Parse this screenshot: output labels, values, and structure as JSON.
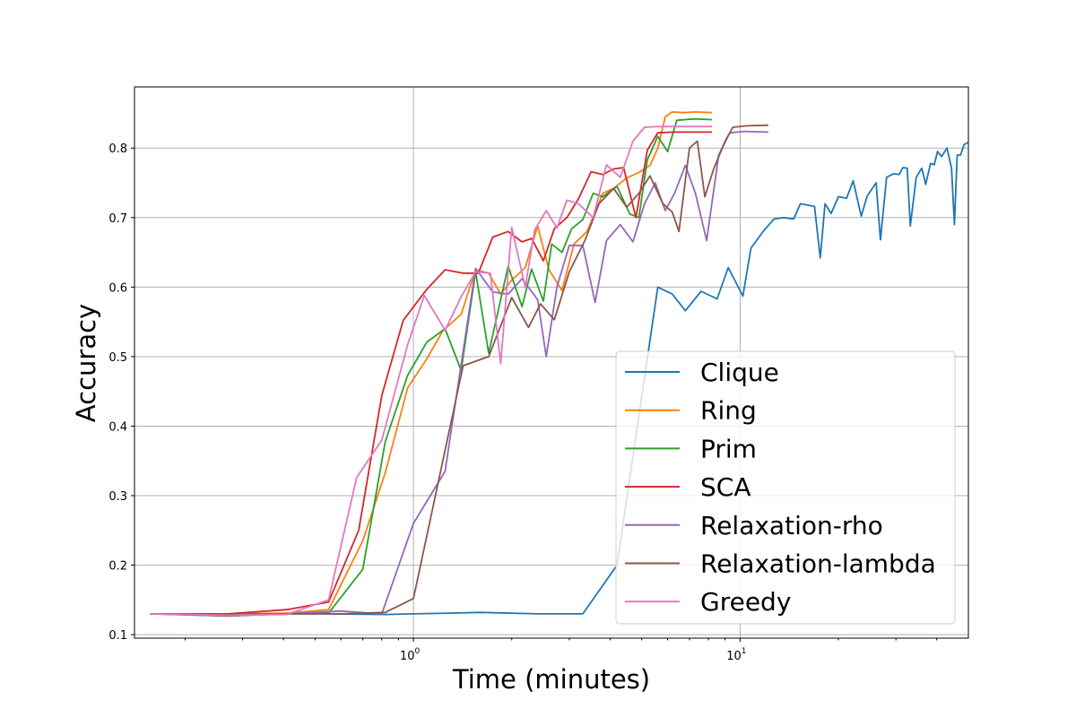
{
  "chart_data": {
    "type": "line",
    "title": "",
    "xlabel": "Time (minutes)",
    "ylabel": "Accuracy",
    "x_scale": "log",
    "xlim": [
      0.14,
      50
    ],
    "ylim": [
      0.095,
      0.888
    ],
    "x_ticks": [
      {
        "value": 1,
        "base": "10",
        "exp": "0"
      },
      {
        "value": 10,
        "base": "10",
        "exp": "1"
      }
    ],
    "y_ticks": [
      {
        "value": 0.1,
        "label": "0.1"
      },
      {
        "value": 0.2,
        "label": "0.2"
      },
      {
        "value": 0.3,
        "label": "0.3"
      },
      {
        "value": 0.4,
        "label": "0.4"
      },
      {
        "value": 0.5,
        "label": "0.5"
      },
      {
        "value": 0.6,
        "label": "0.6"
      },
      {
        "value": 0.7,
        "label": "0.7"
      },
      {
        "value": 0.8,
        "label": "0.8"
      }
    ],
    "grid": true,
    "legend": "lower-right",
    "series": [
      {
        "name": "Clique",
        "color": "#1f77b4",
        "points": [
          [
            0.156,
            0.13
          ],
          [
            0.27,
            0.13
          ],
          [
            0.55,
            0.13
          ],
          [
            0.82,
            0.129
          ],
          [
            1.0,
            0.13
          ],
          [
            1.3,
            0.131
          ],
          [
            1.6,
            0.132
          ],
          [
            2.4,
            0.13
          ],
          [
            3.3,
            0.13
          ],
          [
            4.2,
            0.2
          ],
          [
            5.6,
            0.6
          ],
          [
            6.2,
            0.59
          ],
          [
            6.8,
            0.566
          ],
          [
            7.6,
            0.594
          ],
          [
            8.5,
            0.583
          ],
          [
            9.2,
            0.628
          ],
          [
            10.2,
            0.587
          ],
          [
            10.8,
            0.656
          ],
          [
            11.8,
            0.681
          ],
          [
            12.7,
            0.698
          ],
          [
            13.6,
            0.7
          ],
          [
            14.6,
            0.698
          ],
          [
            15.3,
            0.72
          ],
          [
            16.9,
            0.716
          ],
          [
            17.6,
            0.642
          ],
          [
            18.2,
            0.72
          ],
          [
            19.0,
            0.706
          ],
          [
            20.0,
            0.73
          ],
          [
            21.2,
            0.728
          ],
          [
            22.2,
            0.753
          ],
          [
            23.5,
            0.702
          ],
          [
            24.5,
            0.731
          ],
          [
            26.1,
            0.75
          ],
          [
            26.9,
            0.668
          ],
          [
            28.1,
            0.758
          ],
          [
            29.5,
            0.763
          ],
          [
            30.7,
            0.762
          ],
          [
            31.5,
            0.772
          ],
          [
            32.5,
            0.771
          ],
          [
            33.2,
            0.688
          ],
          [
            34.6,
            0.758
          ],
          [
            36.0,
            0.771
          ],
          [
            37.0,
            0.748
          ],
          [
            38.3,
            0.778
          ],
          [
            39.3,
            0.776
          ],
          [
            40.2,
            0.795
          ],
          [
            41.4,
            0.788
          ],
          [
            43.0,
            0.8
          ],
          [
            44.4,
            0.771
          ],
          [
            45.3,
            0.69
          ],
          [
            46.2,
            0.79
          ],
          [
            47.3,
            0.79
          ],
          [
            48.5,
            0.805
          ],
          [
            49.8,
            0.808
          ]
        ]
      },
      {
        "name": "Ring",
        "color": "#ff7f0e",
        "points": [
          [
            0.156,
            0.13
          ],
          [
            0.27,
            0.13
          ],
          [
            0.41,
            0.131
          ],
          [
            0.55,
            0.136
          ],
          [
            0.7,
            0.235
          ],
          [
            0.82,
            0.333
          ],
          [
            0.96,
            0.455
          ],
          [
            1.1,
            0.497
          ],
          [
            1.23,
            0.537
          ],
          [
            1.4,
            0.561
          ],
          [
            1.55,
            0.625
          ],
          [
            1.7,
            0.62
          ],
          [
            1.85,
            0.59
          ],
          [
            2.0,
            0.61
          ],
          [
            2.2,
            0.628
          ],
          [
            2.4,
            0.688
          ],
          [
            2.6,
            0.625
          ],
          [
            2.85,
            0.595
          ],
          [
            3.1,
            0.662
          ],
          [
            3.4,
            0.68
          ],
          [
            3.8,
            0.735
          ],
          [
            4.1,
            0.742
          ],
          [
            4.5,
            0.757
          ],
          [
            4.9,
            0.765
          ],
          [
            5.3,
            0.775
          ],
          [
            5.6,
            0.8
          ],
          [
            5.9,
            0.845
          ],
          [
            6.2,
            0.852
          ],
          [
            6.7,
            0.851
          ],
          [
            7.3,
            0.852
          ],
          [
            8.2,
            0.851
          ]
        ]
      },
      {
        "name": "Prim",
        "color": "#2ca02c",
        "points": [
          [
            0.156,
            0.13
          ],
          [
            0.27,
            0.13
          ],
          [
            0.41,
            0.13
          ],
          [
            0.55,
            0.131
          ],
          [
            0.7,
            0.194
          ],
          [
            0.82,
            0.378
          ],
          [
            0.96,
            0.473
          ],
          [
            1.1,
            0.521
          ],
          [
            1.25,
            0.54
          ],
          [
            1.4,
            0.48
          ],
          [
            1.55,
            0.622
          ],
          [
            1.7,
            0.505
          ],
          [
            1.95,
            0.63
          ],
          [
            2.15,
            0.572
          ],
          [
            2.3,
            0.626
          ],
          [
            2.5,
            0.58
          ],
          [
            2.65,
            0.662
          ],
          [
            2.85,
            0.65
          ],
          [
            3.05,
            0.684
          ],
          [
            3.3,
            0.697
          ],
          [
            3.55,
            0.735
          ],
          [
            3.8,
            0.73
          ],
          [
            4.2,
            0.745
          ],
          [
            4.6,
            0.705
          ],
          [
            4.9,
            0.7
          ],
          [
            5.2,
            0.783
          ],
          [
            5.6,
            0.817
          ],
          [
            6.0,
            0.795
          ],
          [
            6.4,
            0.84
          ],
          [
            7.2,
            0.842
          ],
          [
            8.2,
            0.841
          ]
        ]
      },
      {
        "name": "SCA",
        "color": "#d62728",
        "points": [
          [
            0.156,
            0.13
          ],
          [
            0.27,
            0.13
          ],
          [
            0.41,
            0.136
          ],
          [
            0.55,
            0.147
          ],
          [
            0.68,
            0.25
          ],
          [
            0.8,
            0.444
          ],
          [
            0.93,
            0.552
          ],
          [
            1.1,
            0.597
          ],
          [
            1.25,
            0.625
          ],
          [
            1.42,
            0.62
          ],
          [
            1.58,
            0.62
          ],
          [
            1.75,
            0.672
          ],
          [
            1.95,
            0.68
          ],
          [
            2.15,
            0.665
          ],
          [
            2.3,
            0.67
          ],
          [
            2.5,
            0.638
          ],
          [
            2.7,
            0.684
          ],
          [
            2.95,
            0.7
          ],
          [
            3.2,
            0.727
          ],
          [
            3.5,
            0.766
          ],
          [
            3.8,
            0.762
          ],
          [
            4.1,
            0.77
          ],
          [
            4.4,
            0.772
          ],
          [
            4.8,
            0.7
          ],
          [
            5.2,
            0.797
          ],
          [
            5.6,
            0.822
          ],
          [
            6.2,
            0.823
          ],
          [
            7.2,
            0.823
          ],
          [
            8.2,
            0.823
          ]
        ]
      },
      {
        "name": "Relaxation-rho",
        "color": "#9467bd",
        "points": [
          [
            0.156,
            0.13
          ],
          [
            0.27,
            0.127
          ],
          [
            0.41,
            0.13
          ],
          [
            0.6,
            0.134
          ],
          [
            0.8,
            0.13
          ],
          [
            1.0,
            0.26
          ],
          [
            1.25,
            0.335
          ],
          [
            1.55,
            0.627
          ],
          [
            1.75,
            0.593
          ],
          [
            1.95,
            0.59
          ],
          [
            2.15,
            0.612
          ],
          [
            2.4,
            0.582
          ],
          [
            2.55,
            0.5
          ],
          [
            2.75,
            0.6
          ],
          [
            3.0,
            0.66
          ],
          [
            3.3,
            0.66
          ],
          [
            3.6,
            0.578
          ],
          [
            3.9,
            0.667
          ],
          [
            4.3,
            0.69
          ],
          [
            4.7,
            0.665
          ],
          [
            5.1,
            0.72
          ],
          [
            5.5,
            0.75
          ],
          [
            5.9,
            0.71
          ],
          [
            6.3,
            0.735
          ],
          [
            6.8,
            0.775
          ],
          [
            7.3,
            0.735
          ],
          [
            7.9,
            0.667
          ],
          [
            8.6,
            0.79
          ],
          [
            9.3,
            0.822
          ],
          [
            10.3,
            0.824
          ],
          [
            12.2,
            0.823
          ]
        ]
      },
      {
        "name": "Relaxation-lambda",
        "color": "#8c564b",
        "points": [
          [
            0.156,
            0.13
          ],
          [
            0.27,
            0.127
          ],
          [
            0.41,
            0.13
          ],
          [
            0.6,
            0.13
          ],
          [
            0.82,
            0.132
          ],
          [
            1.0,
            0.152
          ],
          [
            1.42,
            0.487
          ],
          [
            1.7,
            0.5
          ],
          [
            2.0,
            0.585
          ],
          [
            2.25,
            0.542
          ],
          [
            2.45,
            0.576
          ],
          [
            2.7,
            0.553
          ],
          [
            3.0,
            0.622
          ],
          [
            3.35,
            0.667
          ],
          [
            3.7,
            0.72
          ],
          [
            4.1,
            0.742
          ],
          [
            4.5,
            0.715
          ],
          [
            4.9,
            0.735
          ],
          [
            5.3,
            0.76
          ],
          [
            5.8,
            0.72
          ],
          [
            6.2,
            0.708
          ],
          [
            6.5,
            0.68
          ],
          [
            7.0,
            0.8
          ],
          [
            7.4,
            0.81
          ],
          [
            7.8,
            0.73
          ],
          [
            8.3,
            0.77
          ],
          [
            9.0,
            0.81
          ],
          [
            9.5,
            0.83
          ],
          [
            10.5,
            0.832
          ],
          [
            12.2,
            0.833
          ]
        ]
      },
      {
        "name": "Greedy",
        "color": "#e377c2",
        "points": [
          [
            0.156,
            0.13
          ],
          [
            0.27,
            0.128
          ],
          [
            0.41,
            0.129
          ],
          [
            0.55,
            0.15
          ],
          [
            0.67,
            0.326
          ],
          [
            0.8,
            0.38
          ],
          [
            0.96,
            0.517
          ],
          [
            1.08,
            0.588
          ],
          [
            1.25,
            0.538
          ],
          [
            1.4,
            0.586
          ],
          [
            1.55,
            0.622
          ],
          [
            1.72,
            0.62
          ],
          [
            1.85,
            0.49
          ],
          [
            2.0,
            0.686
          ],
          [
            2.2,
            0.6
          ],
          [
            2.35,
            0.682
          ],
          [
            2.55,
            0.71
          ],
          [
            2.75,
            0.685
          ],
          [
            2.95,
            0.725
          ],
          [
            3.2,
            0.72
          ],
          [
            3.55,
            0.7
          ],
          [
            3.9,
            0.776
          ],
          [
            4.3,
            0.758
          ],
          [
            4.7,
            0.81
          ],
          [
            5.1,
            0.83
          ],
          [
            5.6,
            0.831
          ],
          [
            6.4,
            0.831
          ],
          [
            7.3,
            0.831
          ],
          [
            8.2,
            0.831
          ]
        ]
      }
    ]
  }
}
